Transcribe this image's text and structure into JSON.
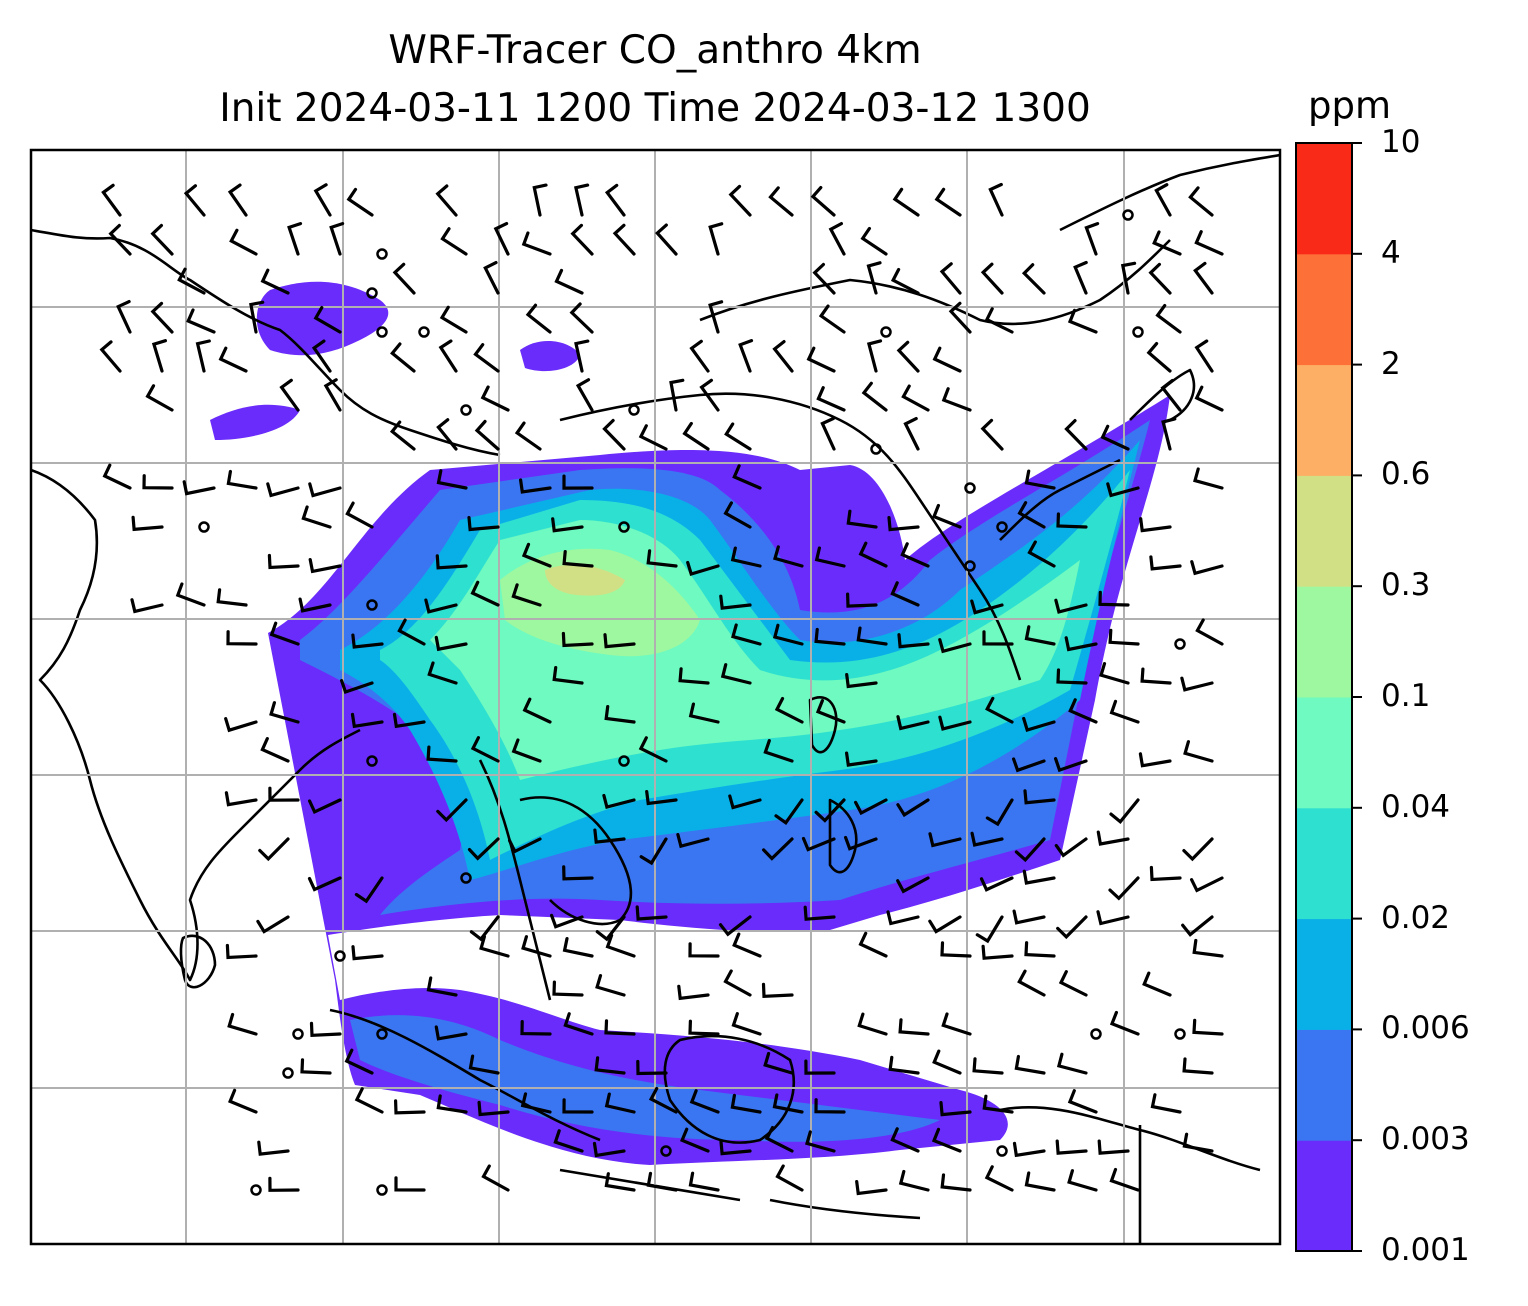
{
  "title": {
    "line1": "WRF-Tracer CO_anthro 4km",
    "line2": "Init 2024-03-11 1200 Time 2024-03-12 1300"
  },
  "colorbar": {
    "unit": "ppm",
    "levels": [
      "0.001",
      "0.003",
      "0.006",
      "0.02",
      "0.04",
      "0.1",
      "0.3",
      "0.6",
      "2",
      "4",
      "10"
    ],
    "colors": [
      "#6a2cfa",
      "#3a76f2",
      "#09b0e8",
      "#2ee0d0",
      "#6efac0",
      "#9ef8a0",
      "#d1e085",
      "#fdb065",
      "#fd7038",
      "#f92a18"
    ]
  },
  "map": {
    "land_outline_color": "#000000",
    "gridline_color": "#b0b0b0",
    "wind_barb_color": "#000000"
  }
}
